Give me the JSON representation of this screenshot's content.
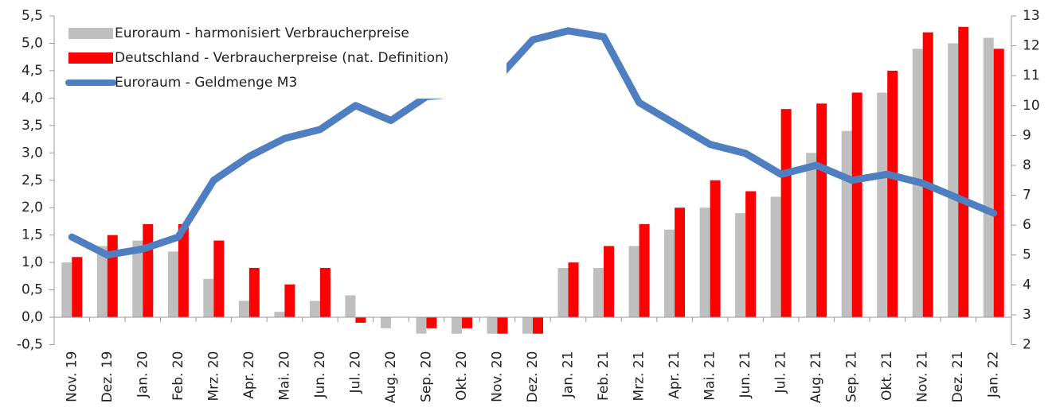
{
  "chart_data": {
    "type": "bar_line",
    "categories": [
      "Nov. 19",
      "Dez. 19",
      "Jan. 20",
      "Feb. 20",
      "Mrz. 20",
      "Apr. 20",
      "Mai. 20",
      "Jun. 20",
      "Jul. 20",
      "Aug. 20",
      "Sep. 20",
      "Okt. 20",
      "Nov. 20",
      "Dez. 20",
      "Jan. 21",
      "Feb. 21",
      "Mrz. 21",
      "Apr. 21",
      "Mai. 21",
      "Jun. 21",
      "Jul. 21",
      "Aug. 21",
      "Sep. 21",
      "Okt. 21",
      "Nov. 21",
      "Dez. 21",
      "Jan. 22"
    ],
    "series": [
      {
        "name": "Euroraum - harmonisiert Verbraucherpreise",
        "color": "#bfbfbf",
        "kind": "bar",
        "values": [
          1.0,
          1.3,
          1.4,
          1.2,
          0.7,
          0.3,
          0.1,
          0.3,
          0.4,
          -0.2,
          -0.3,
          -0.3,
          -0.3,
          -0.3,
          0.9,
          0.9,
          1.3,
          1.6,
          2.0,
          1.9,
          2.2,
          3.0,
          3.4,
          4.1,
          4.9,
          5.0,
          5.1
        ]
      },
      {
        "name": "Deutschland - Verbraucherpreise (nat. Definition)",
        "color": "#ff0000",
        "kind": "bar",
        "values": [
          1.1,
          1.5,
          1.7,
          1.7,
          1.4,
          0.9,
          0.6,
          0.9,
          -0.1,
          0.0,
          -0.2,
          -0.2,
          -0.3,
          -0.3,
          1.0,
          1.3,
          1.7,
          2.0,
          2.5,
          2.3,
          3.8,
          3.9,
          4.1,
          4.5,
          5.2,
          5.3,
          4.9
        ]
      },
      {
        "name": "Euroraum - Geldmenge M3",
        "color": "#4f7fc0",
        "kind": "line",
        "axis": "y2",
        "values": [
          5.6,
          5.0,
          5.2,
          5.6,
          7.5,
          8.3,
          8.9,
          9.2,
          10.0,
          9.5,
          10.3,
          10.4,
          10.9,
          12.2,
          12.5,
          12.3,
          10.1,
          9.4,
          8.7,
          8.4,
          7.7,
          8.0,
          7.5,
          7.7,
          7.4,
          6.9,
          6.4
        ]
      }
    ],
    "ylim": [
      -0.5,
      5.5
    ],
    "yticks": [
      {
        "value": -0.5,
        "label": "-0,5"
      },
      {
        "value": 0,
        "label": "0,0"
      },
      {
        "value": 0.5,
        "label": "0,5"
      },
      {
        "value": 1,
        "label": "1,0"
      },
      {
        "value": 1.5,
        "label": "1,5"
      },
      {
        "value": 2,
        "label": "2,0"
      },
      {
        "value": 2.5,
        "label": "2,5"
      },
      {
        "value": 3,
        "label": "3,0"
      },
      {
        "value": 3.5,
        "label": "3,5"
      },
      {
        "value": 4,
        "label": "4,0"
      },
      {
        "value": 4.5,
        "label": "4,5"
      },
      {
        "value": 5,
        "label": "5,0"
      },
      {
        "value": 5.5,
        "label": "5,5"
      }
    ],
    "y2lim": [
      2,
      13
    ],
    "y2ticks": [
      2,
      3,
      4,
      5,
      6,
      7,
      8,
      9,
      10,
      11,
      12,
      13
    ],
    "legend": "top-left"
  }
}
